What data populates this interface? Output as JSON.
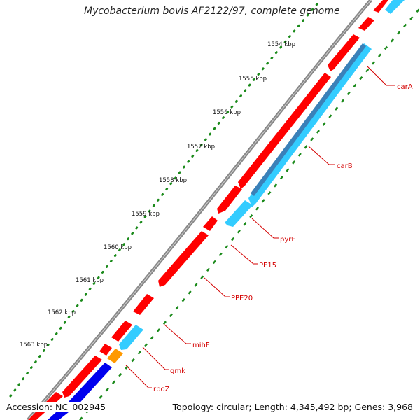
{
  "title": "Mycobacterium bovis AF2122/97, complete genome",
  "footer": {
    "accession": "Accession: NC_002945",
    "info": "Topology: circular; Length: 4,345,492 bp; Genes: 3,968"
  },
  "ticks": [
    {
      "label": "1554 kbp"
    },
    {
      "label": "1555 kbp"
    },
    {
      "label": "1556 kbp"
    },
    {
      "label": "1557 kbp"
    },
    {
      "label": "1558 kbp"
    },
    {
      "label": "1559 kbp"
    },
    {
      "label": "1560 kbp"
    },
    {
      "label": "1561 kbp"
    },
    {
      "label": "1562 kbp"
    },
    {
      "label": "1563 kbp"
    }
  ],
  "genes": [
    {
      "label": "carA"
    },
    {
      "label": "carB"
    },
    {
      "label": "pyrF"
    },
    {
      "label": "PE15"
    },
    {
      "label": "PPE20"
    },
    {
      "label": "mihF"
    },
    {
      "label": "gmk"
    },
    {
      "label": "rpoZ"
    }
  ],
  "colors": {
    "forward_cds": "#ff0000",
    "reverse_cds": "#33ccff",
    "reverse_cds_dark": "#3a80b8",
    "rpoz_cds": "#0000ee",
    "gmk_cds": "#ff9900",
    "backbone": "#888888",
    "label_red": "#d40000",
    "dots": "#1a8a1a"
  }
}
